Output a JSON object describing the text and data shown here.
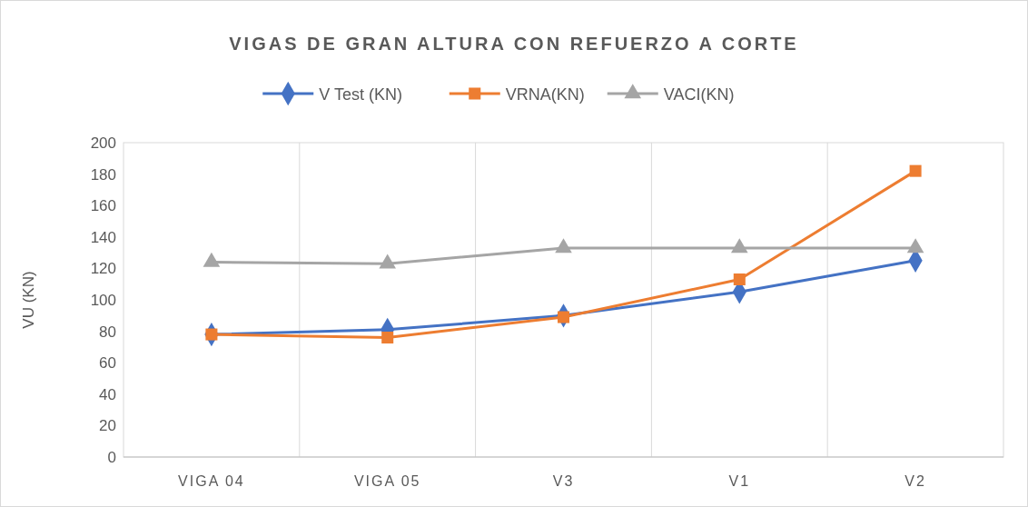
{
  "chart_data": {
    "type": "line",
    "title": "VIGAS DE GRAN ALTURA CON REFUERZO A CORTE",
    "ylabel": "VU (KN)",
    "categories": [
      "VIGA 04",
      "VIGA 05",
      "V3",
      "V1",
      "V2"
    ],
    "series": [
      {
        "name": "V Test (KN)",
        "color": "#4472c4",
        "marker": "diamond",
        "values": [
          78,
          81,
          90,
          105,
          125
        ]
      },
      {
        "name": "VRNA(KN)",
        "color": "#ed7d31",
        "marker": "square",
        "values": [
          78,
          76,
          89,
          113,
          182
        ]
      },
      {
        "name": "VACI(KN)",
        "color": "#a5a5a5",
        "marker": "triangle",
        "values": [
          124,
          123,
          133,
          133,
          133
        ]
      }
    ],
    "ylim": [
      0,
      200
    ],
    "yticks": [
      0,
      20,
      40,
      60,
      80,
      100,
      120,
      140,
      160,
      180,
      200
    ],
    "grid": "x",
    "legend": "top"
  }
}
